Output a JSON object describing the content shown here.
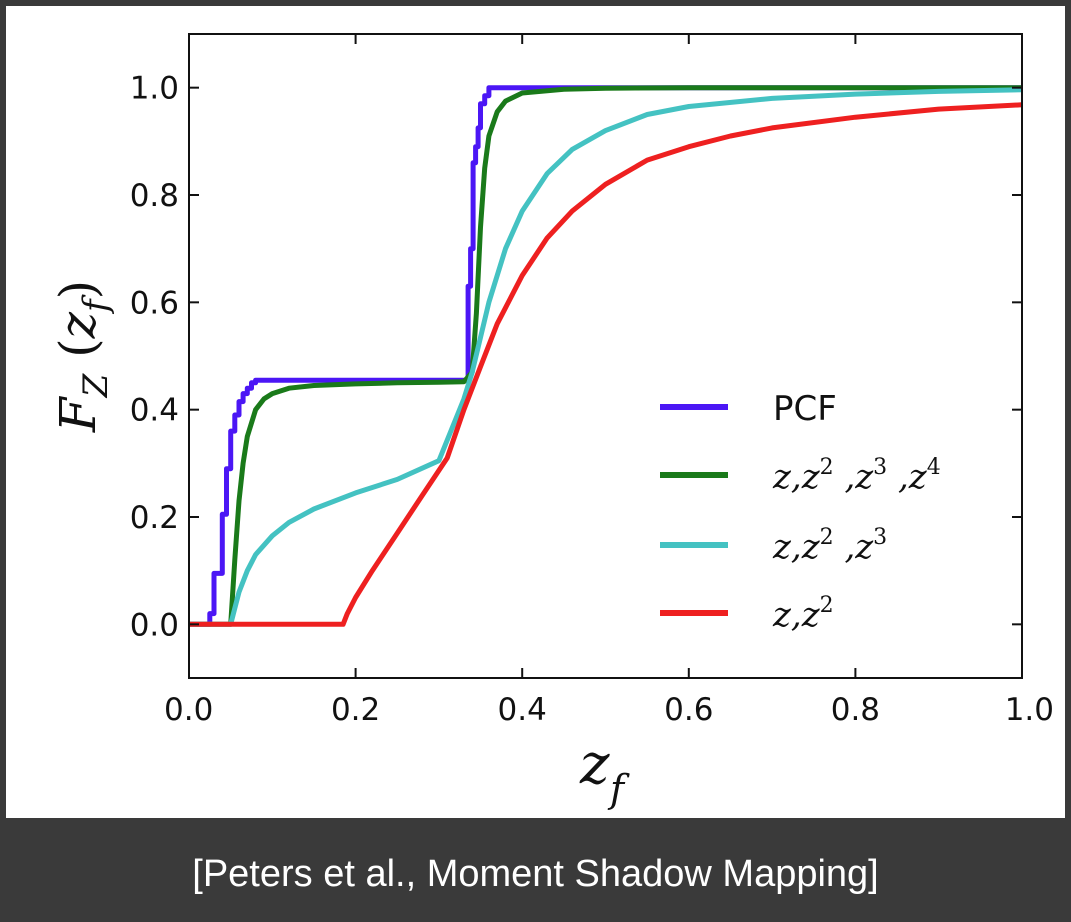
{
  "caption": "[Peters et al., Moment Shadow Mapping]",
  "chart_data": {
    "type": "line",
    "xlabel": "z_f",
    "ylabel": "F_Z(z_f)",
    "xlim": [
      0.0,
      1.0
    ],
    "ylim": [
      -0.1,
      1.1
    ],
    "xticks": [
      "0.0",
      "0.2",
      "0.4",
      "0.6",
      "0.8",
      "1.0"
    ],
    "yticks": [
      "0.0",
      "0.2",
      "0.4",
      "0.6",
      "0.8",
      "1.0"
    ],
    "grid": false,
    "legend_position": "lower-right",
    "series": [
      {
        "name": "PCF",
        "color": "#4b16f5",
        "x": [
          0.0,
          0.025,
          0.025,
          0.03,
          0.03,
          0.04,
          0.04,
          0.045,
          0.045,
          0.05,
          0.05,
          0.055,
          0.055,
          0.06,
          0.06,
          0.065,
          0.065,
          0.07,
          0.07,
          0.075,
          0.075,
          0.08,
          0.08,
          0.335,
          0.335,
          0.338,
          0.338,
          0.341,
          0.341,
          0.344,
          0.344,
          0.347,
          0.347,
          0.35,
          0.35,
          0.355,
          0.355,
          0.36,
          0.36,
          1.0
        ],
        "y": [
          0.0,
          0.0,
          0.02,
          0.02,
          0.095,
          0.095,
          0.205,
          0.205,
          0.29,
          0.29,
          0.36,
          0.36,
          0.39,
          0.39,
          0.415,
          0.415,
          0.43,
          0.43,
          0.44,
          0.44,
          0.45,
          0.45,
          0.455,
          0.455,
          0.63,
          0.63,
          0.7,
          0.7,
          0.86,
          0.86,
          0.89,
          0.89,
          0.925,
          0.925,
          0.97,
          0.97,
          0.985,
          0.985,
          1.0,
          1.0
        ]
      },
      {
        "name": "z,z^2 ,z^3 ,z^4",
        "color": "#1a7a1a",
        "x": [
          0.0,
          0.05,
          0.055,
          0.06,
          0.065,
          0.07,
          0.08,
          0.09,
          0.1,
          0.12,
          0.15,
          0.2,
          0.25,
          0.3,
          0.33,
          0.34,
          0.345,
          0.35,
          0.355,
          0.36,
          0.37,
          0.38,
          0.4,
          0.45,
          0.5,
          0.6,
          1.0
        ],
        "y": [
          0.0,
          0.0,
          0.12,
          0.23,
          0.3,
          0.35,
          0.4,
          0.42,
          0.43,
          0.44,
          0.445,
          0.448,
          0.45,
          0.451,
          0.452,
          0.47,
          0.58,
          0.74,
          0.85,
          0.91,
          0.955,
          0.975,
          0.99,
          0.997,
          0.999,
          1.0,
          1.0
        ]
      },
      {
        "name": "z,z^2 ,z^3",
        "color": "#44c2c2",
        "x": [
          0.0,
          0.05,
          0.055,
          0.06,
          0.07,
          0.08,
          0.1,
          0.12,
          0.15,
          0.2,
          0.25,
          0.3,
          0.33,
          0.34,
          0.36,
          0.38,
          0.4,
          0.43,
          0.46,
          0.5,
          0.55,
          0.6,
          0.7,
          0.8,
          0.9,
          1.0
        ],
        "y": [
          0.0,
          0.0,
          0.03,
          0.06,
          0.1,
          0.13,
          0.165,
          0.19,
          0.215,
          0.245,
          0.27,
          0.305,
          0.42,
          0.47,
          0.6,
          0.7,
          0.77,
          0.84,
          0.885,
          0.92,
          0.95,
          0.965,
          0.98,
          0.988,
          0.993,
          0.996
        ]
      },
      {
        "name": "z,z^2",
        "color": "#ee2020",
        "x": [
          0.0,
          0.185,
          0.19,
          0.2,
          0.22,
          0.25,
          0.28,
          0.31,
          0.33,
          0.35,
          0.37,
          0.4,
          0.43,
          0.46,
          0.5,
          0.55,
          0.6,
          0.65,
          0.7,
          0.8,
          0.9,
          1.0
        ],
        "y": [
          0.0,
          0.0,
          0.02,
          0.05,
          0.1,
          0.17,
          0.24,
          0.31,
          0.4,
          0.48,
          0.56,
          0.65,
          0.72,
          0.77,
          0.82,
          0.865,
          0.89,
          0.91,
          0.925,
          0.945,
          0.96,
          0.968
        ]
      }
    ]
  }
}
